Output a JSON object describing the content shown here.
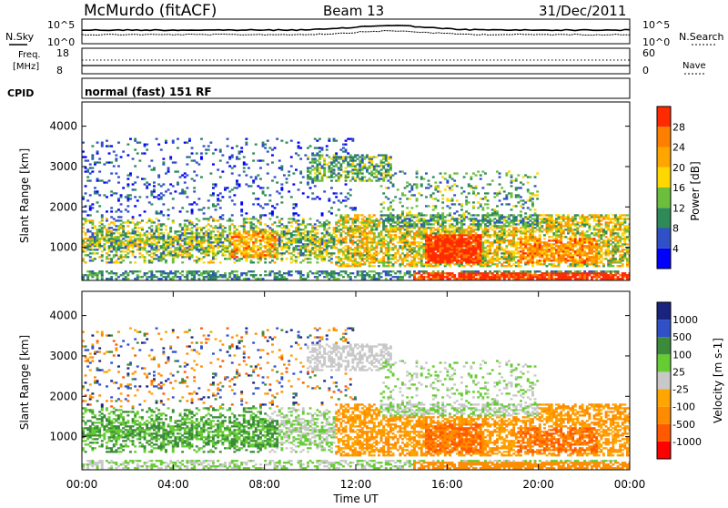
{
  "header": {
    "station": "McMurdo (fitACF)",
    "beam": "Beam 13",
    "date": "31/Dec/2011"
  },
  "noise_panel": {
    "left_label": "N.Sky",
    "right_label": "N.Search",
    "left_ticks": [
      "10^5",
      "10^0"
    ],
    "right_ticks": [
      "10^5",
      "10^0"
    ]
  },
  "freq_panel": {
    "left_label": "Freq.",
    "left_unit": "[MHz]",
    "left_ticks": [
      "18",
      "8"
    ],
    "right_label": "Nave",
    "right_ticks": [
      "60",
      "0"
    ]
  },
  "cpid_panel": {
    "label": "CPID",
    "text": "normal (fast) 151 RF"
  },
  "chart_data": [
    {
      "type": "heatmap",
      "name": "power",
      "ylabel": "Slant Range [km]",
      "yticks": [
        1000,
        2000,
        3000,
        4000
      ],
      "ylim": [
        180,
        4600
      ],
      "xlim_hours": [
        0,
        24
      ],
      "colorbar": {
        "label": "Power [dB]",
        "ticks": [
          "28",
          "24",
          "20",
          "16",
          "12",
          "8",
          "4"
        ],
        "colors": [
          "#0000ff",
          "#3050c8",
          "#2e8b57",
          "#6bbf3c",
          "#ffd700",
          "#ffa500",
          "#ff7f00",
          "#ff2a00"
        ]
      }
    },
    {
      "type": "heatmap",
      "name": "velocity",
      "ylabel": "Slant Range [km]",
      "yticks": [
        1000,
        2000,
        3000,
        4000
      ],
      "ylim": [
        180,
        4600
      ],
      "xlim_hours": [
        0,
        24
      ],
      "xticks": [
        "00:00",
        "04:00",
        "08:00",
        "12:00",
        "16:00",
        "20:00",
        "00:00"
      ],
      "xlabel": "Time UT",
      "colorbar": {
        "label": "Velocity [m s-1]",
        "ticks": [
          "1000",
          "500",
          "100",
          "25",
          "-25",
          "-100",
          "-500",
          "-1000"
        ],
        "colors": [
          "#ff0000",
          "#ff5a00",
          "#ff8c00",
          "#ffa500",
          "#c8c8c8",
          "#66cc33",
          "#3b8b3b",
          "#3050c8",
          "#1a237e"
        ]
      }
    }
  ]
}
